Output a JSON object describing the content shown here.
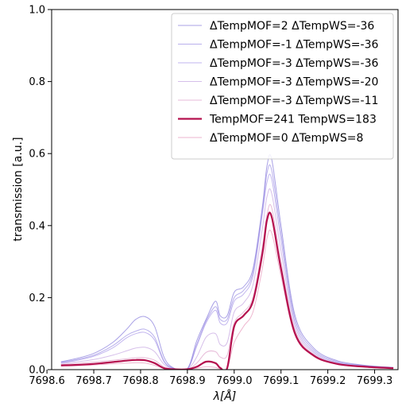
{
  "chart_data": {
    "type": "line",
    "xlabel": "λ[Å]",
    "ylabel": "transmission [a.u.]",
    "xlim": [
      7698.61,
      7699.35
    ],
    "ylim": [
      0.0,
      1.0
    ],
    "xticks": [
      7698.6,
      7698.7,
      7698.8,
      7698.9,
      7699.0,
      7699.1,
      7699.2,
      7699.3
    ],
    "xtick_labels": [
      "7698.6",
      "7698.7",
      "7698.8",
      "7698.9",
      "7699.0",
      "7699.1",
      "7699.2",
      "7699.3"
    ],
    "yticks": [
      0.0,
      0.2,
      0.4,
      0.6,
      0.8,
      1.0
    ],
    "ytick_labels": [
      "0.0",
      "0.2",
      "0.4",
      "0.6",
      "0.8",
      "1.0"
    ],
    "grid": false,
    "legend_position": "top-right",
    "x": [
      7698.63,
      7698.66,
      7698.7,
      7698.74,
      7698.77,
      7698.79,
      7698.81,
      7698.83,
      7698.85,
      7698.87,
      7698.9,
      7698.92,
      7698.94,
      7698.96,
      7698.97,
      7698.985,
      7699.0,
      7699.02,
      7699.04,
      7699.06,
      7699.07,
      7699.08,
      7699.1,
      7699.13,
      7699.17,
      7699.22,
      7699.28,
      7699.34
    ],
    "series": [
      {
        "name": "ΔTempMOF=2 ΔTempWS=-36",
        "color": "#7b6fd8",
        "width": 1,
        "opacity": 0.65,
        "values": [
          0.022,
          0.03,
          0.045,
          0.075,
          0.112,
          0.14,
          0.147,
          0.12,
          0.035,
          0.005,
          0.003,
          0.08,
          0.14,
          0.19,
          0.15,
          0.15,
          0.215,
          0.23,
          0.28,
          0.45,
          0.565,
          0.585,
          0.4,
          0.15,
          0.06,
          0.025,
          0.012,
          0.006
        ]
      },
      {
        "name": "ΔTempMOF=-1 ΔTempWS=-36",
        "color": "#8a7be0",
        "width": 1,
        "opacity": 0.6,
        "values": [
          0.02,
          0.027,
          0.04,
          0.066,
          0.095,
          0.107,
          0.112,
          0.09,
          0.025,
          0.004,
          0.002,
          0.07,
          0.135,
          0.175,
          0.14,
          0.14,
          0.2,
          0.22,
          0.27,
          0.44,
          0.545,
          0.555,
          0.38,
          0.14,
          0.055,
          0.022,
          0.011,
          0.006
        ]
      },
      {
        "name": "ΔTempMOF=-3 ΔTempWS=-36",
        "color": "#9a86e4",
        "width": 1,
        "opacity": 0.6,
        "values": [
          0.019,
          0.025,
          0.037,
          0.06,
          0.088,
          0.1,
          0.103,
          0.082,
          0.022,
          0.003,
          0.002,
          0.065,
          0.13,
          0.165,
          0.13,
          0.13,
          0.19,
          0.21,
          0.26,
          0.43,
          0.52,
          0.53,
          0.36,
          0.13,
          0.05,
          0.02,
          0.01,
          0.005
        ]
      },
      {
        "name": "ΔTempMOF=-3 ΔTempWS=-20",
        "color": "#b48ad8",
        "width": 1,
        "opacity": 0.55,
        "values": [
          0.017,
          0.021,
          0.028,
          0.04,
          0.052,
          0.06,
          0.062,
          0.05,
          0.015,
          0.003,
          0.002,
          0.035,
          0.09,
          0.1,
          0.07,
          0.075,
          0.16,
          0.185,
          0.235,
          0.39,
          0.48,
          0.49,
          0.33,
          0.12,
          0.046,
          0.018,
          0.009,
          0.005
        ]
      },
      {
        "name": "ΔTempMOF=-3 ΔTempWS=-11",
        "color": "#d484b8",
        "width": 1,
        "opacity": 0.55,
        "values": [
          0.014,
          0.017,
          0.021,
          0.026,
          0.03,
          0.033,
          0.033,
          0.026,
          0.008,
          0.002,
          0.001,
          0.018,
          0.048,
          0.05,
          0.035,
          0.04,
          0.13,
          0.16,
          0.2,
          0.34,
          0.43,
          0.45,
          0.3,
          0.11,
          0.042,
          0.017,
          0.008,
          0.004
        ]
      },
      {
        "name": "TempMOF=241 TempWS=183",
        "color": "#b5104e",
        "width": 2.2,
        "opacity": 1.0,
        "values": [
          0.012,
          0.013,
          0.016,
          0.021,
          0.025,
          0.027,
          0.026,
          0.018,
          0.004,
          0.001,
          0.001,
          0.008,
          0.022,
          0.018,
          0.005,
          0.004,
          0.12,
          0.15,
          0.19,
          0.32,
          0.415,
          0.425,
          0.28,
          0.1,
          0.039,
          0.016,
          0.008,
          0.004
        ]
      },
      {
        "name": "ΔTempMOF=0 ΔTempWS=8",
        "color": "#e07aa8",
        "width": 1,
        "opacity": 0.55,
        "values": [
          0.01,
          0.011,
          0.013,
          0.016,
          0.018,
          0.019,
          0.018,
          0.012,
          0.003,
          0.001,
          0.001,
          0.004,
          0.008,
          0.006,
          0.002,
          0.003,
          0.075,
          0.12,
          0.16,
          0.28,
          0.365,
          0.38,
          0.26,
          0.095,
          0.037,
          0.015,
          0.007,
          0.004
        ]
      }
    ]
  }
}
